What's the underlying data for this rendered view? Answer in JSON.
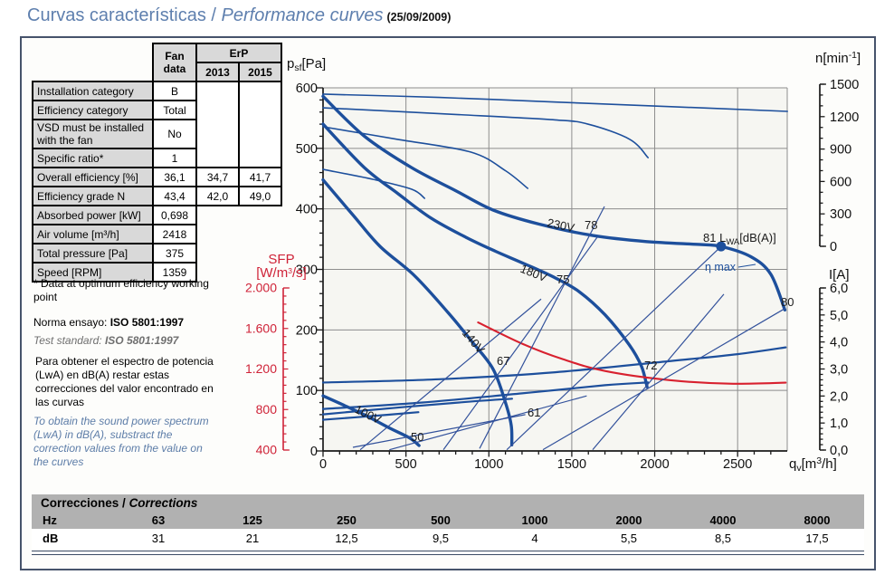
{
  "title": {
    "main": "Curvas características / ",
    "italic": "Performance curves",
    "date": "(25/09/2009)"
  },
  "fan_table": {
    "header": {
      "fan_line1": "Fan",
      "fan_line2": "data",
      "erp": "ErP",
      "y2013": "2013",
      "y2015": "2015"
    },
    "rows": [
      {
        "label": "Installation category",
        "fan": "B"
      },
      {
        "label": "Efficiency category",
        "fan": "Total"
      },
      {
        "label": "VSD must be installed with the fan",
        "fan": "No"
      },
      {
        "label": "Specific ratio*",
        "fan": "1"
      },
      {
        "label": "Overall efficiency [%]",
        "fan": "36,1",
        "e2013": "34,7",
        "e2015": "41,7"
      },
      {
        "label": "Efficiency grade N",
        "fan": "43,4",
        "e2013": "42,0",
        "e2015": "49,0"
      },
      {
        "label": "Absorbed power [kW]",
        "fan": "0,698"
      },
      {
        "label": "Air volume [m³/h]",
        "fan": "2418"
      },
      {
        "label": "Total pressure [Pa]",
        "fan": "375"
      },
      {
        "label": "Speed [RPM]",
        "fan": "1359"
      }
    ]
  },
  "notes": {
    "optimum": "* Data at optimum efficiency working point",
    "norma_label": "Norma ensayo: ",
    "norma_value": "ISO 5801:1997",
    "test_label": "Test standard: ",
    "test_value": "ISO 5801:1997",
    "es_paragraph": "Para obtener el espectro de potencia (LwA) en dB(A) restar estas correcciones del valor encontrado en las curvas",
    "en_paragraph": "To obtain the sound power spectrum (LwA) in dB(A), substract the correction values from the value on the curves"
  },
  "chart": {
    "axes": {
      "x": {
        "values": [
          0,
          500,
          1000,
          1500,
          2000,
          2500
        ],
        "labels": [
          "0",
          "500",
          "1000",
          "1500",
          "2000",
          "2500"
        ]
      },
      "pa": {
        "values": [
          600,
          500,
          400,
          300,
          200,
          100,
          0
        ],
        "labels": [
          "600",
          "500",
          "400",
          "300",
          "200",
          "100",
          "0"
        ]
      },
      "n": {
        "values": [
          1500,
          1200,
          900,
          600,
          300,
          0
        ],
        "labels": [
          "1500",
          "1200",
          "900",
          "600",
          "300",
          "0"
        ]
      },
      "i": {
        "values": [
          6,
          5,
          4,
          3,
          2,
          1,
          0
        ],
        "labels": [
          "6,0",
          "5,0",
          "4,0",
          "3,0",
          "2,0",
          "1,0",
          "0,0"
        ]
      },
      "sfp": {
        "values": [
          2000,
          1600,
          1200,
          800,
          400
        ],
        "labels": [
          "2.000",
          "1.600",
          "1.200",
          "800",
          "400"
        ]
      }
    },
    "titles": {
      "pa": {
        "p": "p",
        "sub": "sf",
        "rest": "[Pa]"
      },
      "n": {
        "pre": "n[min",
        "sup": "-1",
        "post": "]"
      },
      "x": {
        "pre": "q",
        "sub": "v",
        "mid": "[m",
        "sup": "3",
        "post": "/h]"
      },
      "i": "I[A]",
      "sfp": {
        "line1": "SFP",
        "pre": "[W/m",
        "sup": "3",
        "post": "/s]"
      }
    },
    "labels": {
      "v230": "230V",
      "v180": "180V",
      "v140": "140V",
      "v100": "100V",
      "l78": "78",
      "l75": "75",
      "l67": "67",
      "l61": "61",
      "l50": "50",
      "l72": "72",
      "l80": "80",
      "l81_prefix": "81 L",
      "l81_sub": "WA",
      "l81_rest": "[dB(A)]",
      "eta": "η max"
    }
  },
  "chart_data": {
    "type": "line",
    "title": "Curvas características / Performance curves",
    "xlabel": "qv [m³/h]",
    "ylabel": "psf [Pa]",
    "x_range": [
      0,
      2800
    ],
    "y_range_pa": [
      0,
      600
    ],
    "y_range_n": [
      0,
      1500
    ],
    "y_range_i": [
      0,
      6
    ],
    "y_range_sfp": [
      400,
      2000
    ],
    "grid": true,
    "series": [
      {
        "id": "pressure-230v",
        "label": "230V",
        "style": "thick",
        "axis": "pa",
        "points": [
          [
            0,
            586
          ],
          [
            250,
            520
          ],
          [
            535,
            468
          ],
          [
            800,
            430
          ],
          [
            1026,
            398
          ],
          [
            1300,
            375
          ],
          [
            1627,
            356
          ],
          [
            1950,
            346
          ],
          [
            2280,
            341
          ],
          [
            2400,
            338
          ],
          [
            2580,
            321
          ],
          [
            2700,
            292
          ],
          [
            2785,
            233
          ]
        ]
      },
      {
        "id": "pressure-180v",
        "label": "180V",
        "style": "thick",
        "axis": "pa",
        "points": [
          [
            0,
            540
          ],
          [
            250,
            468
          ],
          [
            453,
            425
          ],
          [
            650,
            385
          ],
          [
            862,
            353
          ],
          [
            1040,
            330
          ],
          [
            1217,
            309
          ],
          [
            1400,
            286
          ],
          [
            1545,
            263
          ],
          [
            1700,
            225
          ],
          [
            1845,
            176
          ],
          [
            1920,
            140
          ],
          [
            1954,
            106
          ]
        ]
      },
      {
        "id": "pressure-140v",
        "label": "140V",
        "style": "thick",
        "axis": "pa",
        "points": [
          [
            0,
            448
          ],
          [
            180,
            390
          ],
          [
            344,
            338
          ],
          [
            550,
            290
          ],
          [
            753,
            229
          ],
          [
            900,
            180
          ],
          [
            1026,
            135
          ],
          [
            1100,
            80
          ],
          [
            1135,
            42
          ],
          [
            1138,
            10
          ]
        ]
      },
      {
        "id": "pressure-100v",
        "label": "100V",
        "style": "thick",
        "axis": "pa",
        "points": [
          [
            0,
            91
          ],
          [
            130,
            75
          ],
          [
            262,
            58
          ],
          [
            400,
            38
          ],
          [
            519,
            22
          ],
          [
            579,
            9
          ]
        ]
      },
      {
        "id": "speed-230v",
        "style": "thin",
        "axis": "n",
        "points": [
          [
            0,
            1408
          ],
          [
            700,
            1378
          ],
          [
            1400,
            1335
          ],
          [
            2100,
            1292
          ],
          [
            2800,
            1249
          ]
        ]
      },
      {
        "id": "speed-180v",
        "style": "thin",
        "axis": "n",
        "points": [
          [
            0,
            1282
          ],
          [
            800,
            1220
          ],
          [
            1400,
            1170
          ],
          [
            1600,
            1130
          ],
          [
            1850,
            990
          ],
          [
            1960,
            820
          ]
        ]
      },
      {
        "id": "speed-140v",
        "style": "thin",
        "axis": "n",
        "points": [
          [
            0,
            1106
          ],
          [
            450,
            990
          ],
          [
            890,
            872
          ],
          [
            1100,
            700
          ],
          [
            1234,
            536
          ]
        ]
      },
      {
        "id": "speed-100v",
        "style": "thin",
        "axis": "n",
        "points": [
          [
            0,
            712
          ],
          [
            300,
            620
          ],
          [
            535,
            528
          ],
          [
            612,
            444
          ]
        ]
      },
      {
        "id": "current-230v",
        "style": "current",
        "axis": "i",
        "points": [
          [
            0,
            2.5
          ],
          [
            700,
            2.62
          ],
          [
            1400,
            2.88
          ],
          [
            2100,
            3.3
          ],
          [
            2500,
            3.55
          ],
          [
            2790,
            3.8
          ]
        ]
      },
      {
        "id": "current-180v",
        "style": "current",
        "axis": "i",
        "points": [
          [
            0,
            1.52
          ],
          [
            600,
            1.76
          ],
          [
            1200,
            2.1
          ],
          [
            1700,
            2.4
          ],
          [
            1960,
            2.5
          ]
        ]
      },
      {
        "id": "current-140v",
        "style": "current",
        "axis": "i",
        "points": [
          [
            0,
            1.32
          ],
          [
            500,
            1.6
          ],
          [
            900,
            1.8
          ],
          [
            1140,
            1.9
          ]
        ]
      },
      {
        "id": "current-100v",
        "style": "current",
        "axis": "i",
        "points": [
          [
            0,
            1.12
          ],
          [
            300,
            1.26
          ],
          [
            575,
            1.4
          ]
        ]
      },
      {
        "id": "sfp-curve",
        "label": "SFP",
        "style": "red",
        "axis": "sfp",
        "points": [
          [
            935,
            1660
          ],
          [
            1200,
            1450
          ],
          [
            1440,
            1300
          ],
          [
            1700,
            1180
          ],
          [
            2090,
            1090
          ],
          [
            2450,
            1055
          ],
          [
            2790,
            1065
          ]
        ]
      },
      {
        "id": "lwa-50",
        "label": "50",
        "style": "lwa",
        "axis": "pa",
        "points": [
          [
            180,
            6
          ],
          [
            1220,
            60
          ]
        ]
      },
      {
        "id": "lwa-61",
        "label": "61",
        "style": "lwa",
        "axis": "pa",
        "points": [
          [
            400,
            2
          ],
          [
            1590,
            91
          ]
        ]
      },
      {
        "id": "lwa-67",
        "label": "67",
        "style": "lwa",
        "axis": "pa",
        "points": [
          [
            224,
            2
          ],
          [
            1315,
            251
          ]
        ]
      },
      {
        "id": "lwa-75",
        "label": "75",
        "style": "lwa",
        "axis": "pa",
        "points": [
          [
            726,
            2
          ],
          [
            1653,
            353
          ]
        ]
      },
      {
        "id": "lwa-78",
        "label": "78",
        "style": "lwa",
        "axis": "pa",
        "points": [
          [
            944,
            4
          ],
          [
            1697,
            404
          ]
        ]
      },
      {
        "id": "lwa-eta-max",
        "label": "η max",
        "style": "lwa",
        "axis": "pa",
        "points": [
          [
            1108,
            2
          ],
          [
            2401,
            338
          ]
        ]
      },
      {
        "id": "lwa-80",
        "label": "80",
        "style": "lwa",
        "axis": "pa",
        "points": [
          [
            1326,
            2
          ],
          [
            2783,
            235
          ]
        ]
      },
      {
        "id": "lwa-72",
        "label": "72",
        "style": "lwa",
        "axis": "pa",
        "points": [
          [
            1626,
            2
          ],
          [
            2417,
            259
          ]
        ]
      }
    ],
    "optimum_point": {
      "axis": "pa",
      "x": 2400,
      "y": 338,
      "lwa_label": "81 LWA [dB(A)]"
    }
  },
  "corrections": {
    "title_es": "Correcciones /",
    "title_en": "Corrections",
    "row1_label": "Hz",
    "row2_label": "dB",
    "hz": [
      "63",
      "125",
      "250",
      "500",
      "1000",
      "2000",
      "4000",
      "8000"
    ],
    "db": [
      "31",
      "21",
      "12,5",
      "9,5",
      "4",
      "5,5",
      "8,5",
      "17,5"
    ]
  }
}
